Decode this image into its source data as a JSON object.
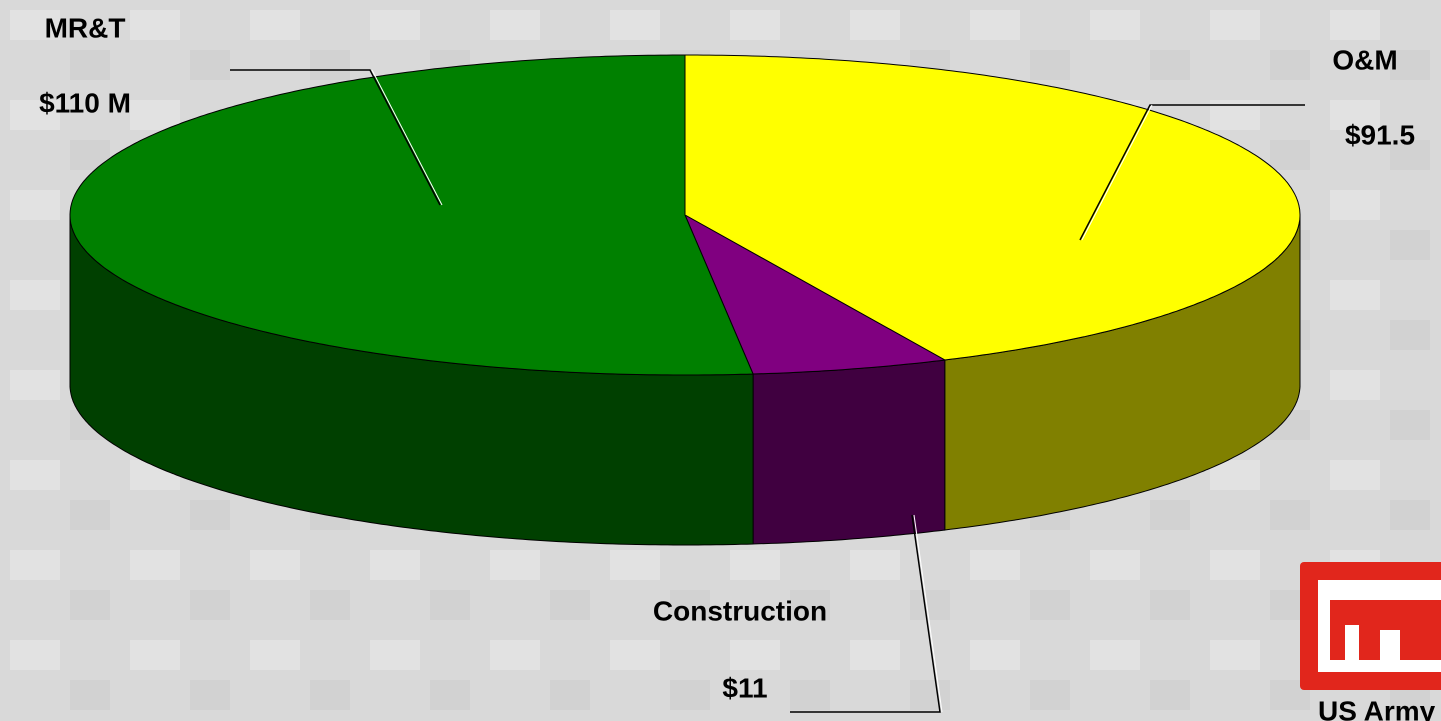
{
  "chart_data": {
    "type": "pie3d",
    "categories": [
      "O&M",
      "Construction",
      "MR&T"
    ],
    "values": [
      91.5,
      11,
      110
    ],
    "value_labels": [
      "$91.5",
      "$11",
      "$110 M"
    ],
    "colors": [
      "#ffff00",
      "#800080",
      "#008000"
    ],
    "side_colors": [
      "#808000",
      "#400040",
      "#004000"
    ]
  },
  "logo_text": "US Army"
}
